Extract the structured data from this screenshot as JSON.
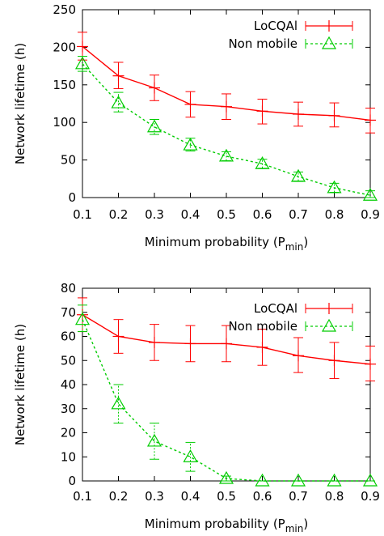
{
  "chart_data": [
    {
      "type": "line",
      "title": "",
      "xlabel": "Minimum probability (P",
      "xlabel_sub": "min",
      "xlabel_close": ")",
      "ylabel": "Network lifetime (h)",
      "x": [
        0.1,
        0.2,
        0.3,
        0.4,
        0.5,
        0.6,
        0.7,
        0.8,
        0.9
      ],
      "x_tick_labels": [
        "0.1",
        "0.2",
        "0.3",
        "0.4",
        "0.5",
        "0.6",
        "0.7",
        "0.8",
        "0.9"
      ],
      "y_ticks": [
        0,
        50,
        100,
        150,
        200,
        250
      ],
      "xlim": [
        0.1,
        0.9
      ],
      "ylim": [
        0,
        250
      ],
      "grid": false,
      "legend_position": "top-right",
      "series": [
        {
          "name": "LoCQAl",
          "color": "#ff0000",
          "marker": "cross",
          "line_style": "solid",
          "values": [
            201,
            162,
            146,
            124,
            121,
            115,
            111,
            109,
            103
          ],
          "error_low": [
            183,
            145,
            129,
            107,
            104,
            98,
            95,
            94,
            86
          ],
          "error_high": [
            220,
            180,
            163,
            141,
            138,
            131,
            127,
            126,
            119
          ]
        },
        {
          "name": "Non mobile",
          "color": "#00cc00",
          "marker": "triangle",
          "line_style": "dashed",
          "values": [
            178,
            126,
            94,
            70,
            55,
            45,
            28,
            13,
            3
          ],
          "error_low": [
            168,
            114,
            84,
            62,
            49,
            39,
            22,
            7,
            0
          ],
          "error_high": [
            188,
            140,
            104,
            79,
            61,
            51,
            34,
            19,
            9
          ]
        }
      ]
    },
    {
      "type": "line",
      "title": "",
      "xlabel": "Minimum probability (P",
      "xlabel_sub": "min",
      "xlabel_close": ")",
      "ylabel": "Network lifetime (h)",
      "x": [
        0.1,
        0.2,
        0.3,
        0.4,
        0.5,
        0.6,
        0.7,
        0.8,
        0.9
      ],
      "x_tick_labels": [
        "0.1",
        "0.2",
        "0.3",
        "0.4",
        "0.5",
        "0.6",
        "0.7",
        "0.8",
        "0.9"
      ],
      "y_ticks": [
        0,
        10,
        20,
        30,
        40,
        50,
        60,
        70,
        80
      ],
      "xlim": [
        0.1,
        0.9
      ],
      "ylim": [
        0,
        80
      ],
      "grid": false,
      "legend_position": "top-right",
      "series": [
        {
          "name": "LoCQAl",
          "color": "#ff0000",
          "marker": "cross",
          "line_style": "solid",
          "values": [
            69,
            60,
            57.5,
            57,
            57,
            55.5,
            52,
            50,
            48.5
          ],
          "error_low": [
            62,
            53,
            50,
            49.5,
            49.5,
            48,
            45,
            42.5,
            41.5
          ],
          "error_high": [
            76,
            67,
            65,
            64.5,
            64.5,
            63,
            59.5,
            57.5,
            56
          ]
        },
        {
          "name": "Non mobile",
          "color": "#00cc00",
          "marker": "triangle",
          "line_style": "dashed",
          "values": [
            67,
            32,
            16.5,
            10,
            1,
            0,
            0,
            0,
            0
          ],
          "error_low": [
            62,
            24,
            9,
            4,
            0,
            0,
            0,
            0,
            0
          ],
          "error_high": [
            73,
            40,
            24,
            16,
            2,
            0,
            0,
            0,
            0
          ]
        }
      ]
    }
  ]
}
